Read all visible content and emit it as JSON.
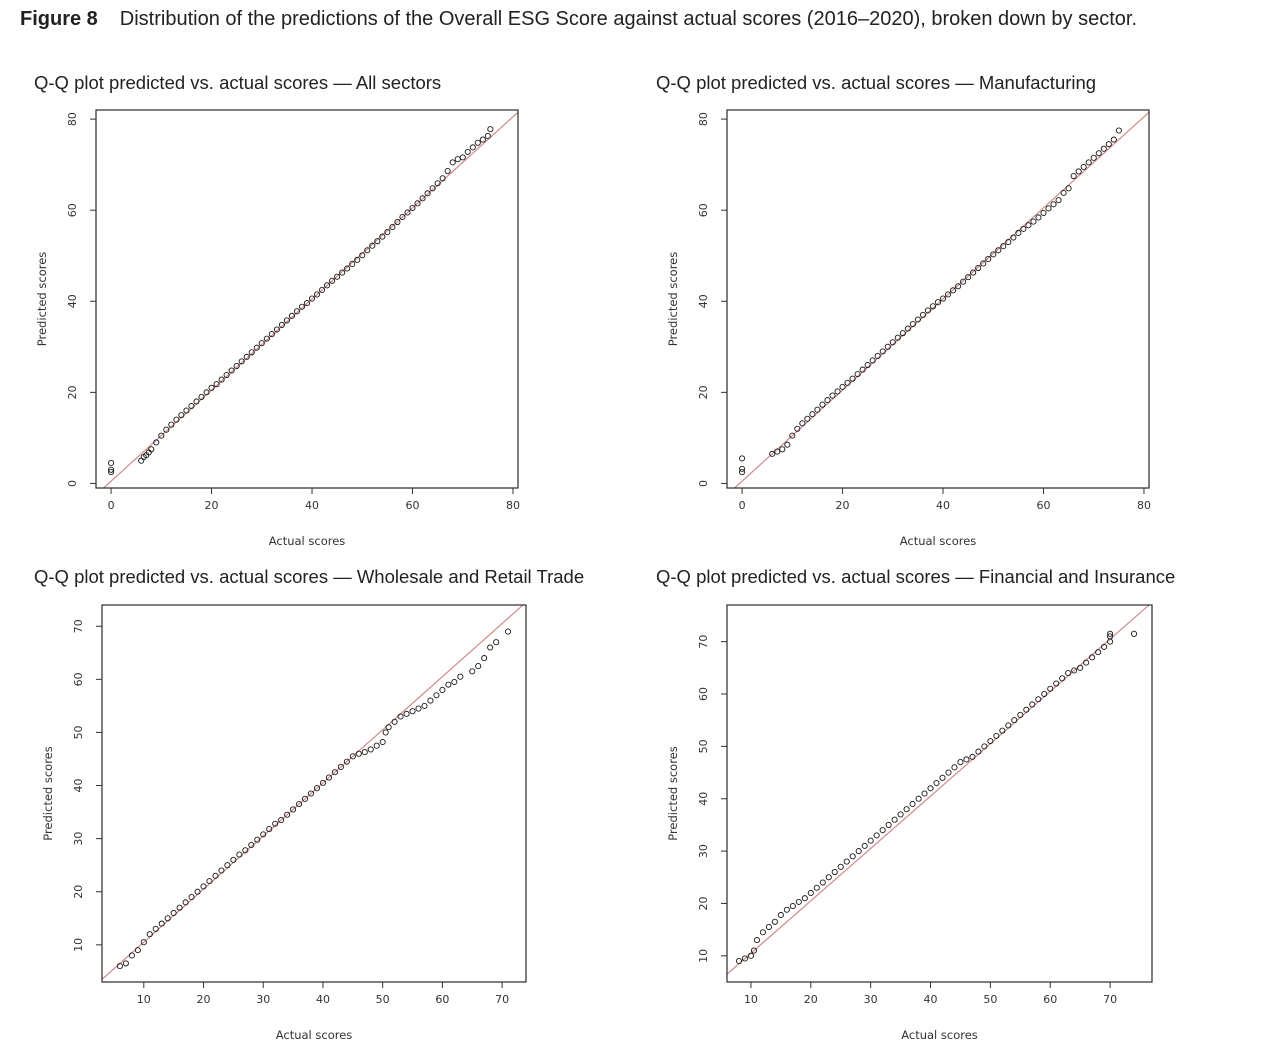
{
  "figure": {
    "label": "Figure 8",
    "caption": "Distribution of the predictions of the Overall ESG Score against actual scores (2016–2020), broken down by sector."
  },
  "colors": {
    "reference_line": "#d18a8a",
    "points": "#1a1a1a",
    "frame": "#2a2a2a"
  },
  "chart_data": [
    {
      "type": "scatter",
      "title": "Q-Q plot predicted vs. actual scores — All sectors",
      "xlabel": "Actual scores",
      "ylabel": "Predicted scores",
      "xlim": [
        -3,
        81
      ],
      "ylim": [
        -1,
        82
      ],
      "xticks": [
        0,
        20,
        40,
        60,
        80
      ],
      "yticks": [
        0,
        20,
        40,
        60,
        80
      ],
      "grid": false,
      "reference_line": {
        "intercept": 0.5,
        "slope": 1.0
      },
      "x": [
        0,
        0,
        0,
        6,
        6.5,
        7,
        7.5,
        8,
        9,
        10,
        11,
        12,
        13,
        14,
        15,
        16,
        17,
        18,
        19,
        20,
        21,
        22,
        23,
        24,
        25,
        26,
        27,
        28,
        29,
        30,
        31,
        32,
        33,
        34,
        35,
        36,
        37,
        38,
        39,
        40,
        41,
        42,
        43,
        44,
        45,
        46,
        47,
        48,
        49,
        50,
        51,
        52,
        53,
        54,
        55,
        56,
        57,
        58,
        59,
        60,
        61,
        62,
        63,
        64,
        65,
        66,
        67,
        68,
        69,
        70,
        71,
        72,
        73,
        74,
        75,
        75.5
      ],
      "y": [
        2.5,
        3,
        4.5,
        5,
        5.8,
        6.2,
        6.8,
        7.5,
        9,
        10.5,
        11.8,
        12.9,
        14,
        15,
        16,
        17,
        18,
        19,
        20,
        21,
        21.8,
        22.8,
        23.8,
        24.8,
        25.8,
        26.8,
        27.8,
        28.8,
        29.8,
        30.8,
        31.8,
        32.8,
        33.8,
        34.8,
        35.8,
        36.8,
        37.8,
        38.8,
        39.6,
        40.6,
        41.5,
        42.5,
        43.5,
        44.5,
        45.4,
        46.3,
        47.2,
        48.2,
        49.1,
        50.1,
        51.2,
        52.2,
        53.2,
        54.2,
        55.2,
        56.3,
        57.4,
        58.5,
        59.5,
        60.5,
        61.5,
        62.6,
        63.7,
        64.8,
        65.9,
        67,
        68.6,
        70.5,
        71.2,
        71.6,
        72.8,
        73.8,
        74.8,
        75.5,
        76.3,
        77.8
      ]
    },
    {
      "type": "scatter",
      "title": "Q-Q plot predicted vs. actual scores — Manufacturing",
      "xlabel": "Actual scores",
      "ylabel": "Predicted scores",
      "xlim": [
        -3,
        81
      ],
      "ylim": [
        -1,
        82
      ],
      "xticks": [
        0,
        20,
        40,
        60,
        80
      ],
      "yticks": [
        0,
        20,
        40,
        60,
        80
      ],
      "grid": false,
      "reference_line": {
        "intercept": 0.5,
        "slope": 1.0
      },
      "x": [
        0,
        0,
        0,
        6,
        7,
        8,
        9,
        10,
        11,
        12,
        13,
        14,
        15,
        16,
        17,
        18,
        19,
        20,
        21,
        22,
        23,
        24,
        25,
        26,
        27,
        28,
        29,
        30,
        31,
        32,
        33,
        34,
        35,
        36,
        37,
        38,
        39,
        40,
        41,
        42,
        43,
        44,
        45,
        46,
        47,
        48,
        49,
        50,
        51,
        52,
        53,
        54,
        55,
        56,
        57,
        58,
        59,
        60,
        61,
        62,
        63,
        64,
        65,
        66,
        67,
        68,
        69,
        70,
        71,
        72,
        73,
        74,
        75
      ],
      "y": [
        2.5,
        3.2,
        5.5,
        6.5,
        7,
        7.5,
        8.5,
        10.5,
        12,
        13.2,
        14.2,
        15.2,
        16.2,
        17.3,
        18.3,
        19.3,
        20.2,
        21.2,
        22.1,
        23,
        24,
        25,
        26,
        27,
        28,
        29,
        30,
        31,
        32,
        33,
        34,
        35,
        36,
        37,
        38,
        38.9,
        39.8,
        40.6,
        41.5,
        42.4,
        43.3,
        44.3,
        45.3,
        46.3,
        47.3,
        48.3,
        49.3,
        50.3,
        51.2,
        52.1,
        53,
        54,
        55,
        55.9,
        56.7,
        57.5,
        58.4,
        59.4,
        60.4,
        61.3,
        62.2,
        63.8,
        64.8,
        67.5,
        68.5,
        69.5,
        70.5,
        71.5,
        72.5,
        73.5,
        74.5,
        75.5,
        77.5
      ]
    },
    {
      "type": "scatter",
      "title": "Q-Q plot predicted vs. actual scores — Wholesale and Retail Trade",
      "xlabel": "Actual scores",
      "ylabel": "Predicted scores",
      "xlim": [
        3,
        74
      ],
      "ylim": [
        3,
        74
      ],
      "xticks": [
        10,
        20,
        30,
        40,
        50,
        60,
        70
      ],
      "yticks": [
        10,
        20,
        30,
        40,
        50,
        60,
        70
      ],
      "grid": false,
      "reference_line": {
        "intercept": 0.5,
        "slope": 1.0
      },
      "x": [
        6,
        7,
        8,
        9,
        10,
        11,
        12,
        13,
        14,
        15,
        16,
        17,
        18,
        19,
        20,
        21,
        22,
        23,
        24,
        25,
        26,
        27,
        28,
        29,
        30,
        31,
        32,
        33,
        34,
        35,
        36,
        37,
        38,
        39,
        40,
        41,
        42,
        43,
        44,
        45,
        46,
        47,
        48,
        49,
        50,
        50.5,
        51,
        52,
        53,
        54,
        55,
        56,
        57,
        58,
        59,
        60,
        61,
        62,
        63,
        65,
        66,
        67,
        68,
        69,
        71
      ],
      "y": [
        6,
        6.5,
        8,
        9,
        10.5,
        12,
        13,
        14,
        15,
        16,
        17,
        18,
        19,
        20,
        21,
        22,
        23,
        24,
        25,
        26,
        27,
        27.8,
        28.8,
        29.8,
        30.8,
        31.8,
        32.8,
        33.5,
        34.5,
        35.5,
        36.5,
        37.5,
        38.5,
        39.5,
        40.5,
        41.5,
        42.5,
        43.5,
        44.5,
        45.5,
        46,
        46.3,
        46.8,
        47.5,
        48.2,
        50,
        51,
        52,
        53,
        53.5,
        54,
        54.5,
        55,
        56,
        57,
        58,
        59,
        59.5,
        60.5,
        61.5,
        62.5,
        64,
        66,
        67,
        69
      ]
    },
    {
      "type": "scatter",
      "title": "Q-Q plot predicted vs. actual scores — Financial and Insurance",
      "xlabel": "Actual scores",
      "ylabel": "Predicted scores",
      "xlim": [
        6,
        77
      ],
      "ylim": [
        5,
        77
      ],
      "xticks": [
        10,
        20,
        30,
        40,
        50,
        60,
        70
      ],
      "yticks": [
        10,
        20,
        30,
        40,
        50,
        60,
        70
      ],
      "grid": false,
      "reference_line": {
        "intercept": 0.5,
        "slope": 1.0
      },
      "x": [
        8,
        9,
        10,
        10.5,
        11,
        12,
        13,
        14,
        15,
        16,
        17,
        18,
        19,
        20,
        21,
        22,
        23,
        24,
        25,
        26,
        27,
        28,
        29,
        30,
        31,
        32,
        33,
        34,
        35,
        36,
        37,
        38,
        39,
        40,
        41,
        42,
        43,
        44,
        45,
        46,
        47,
        48,
        49,
        50,
        51,
        52,
        53,
        54,
        55,
        56,
        57,
        58,
        59,
        60,
        61,
        62,
        63,
        64,
        65,
        66,
        67,
        68,
        69,
        70,
        70,
        70,
        74
      ],
      "y": [
        9,
        9.5,
        10,
        11,
        13,
        14.5,
        15.5,
        16.5,
        17.8,
        18.8,
        19.5,
        20.3,
        21,
        22,
        23,
        24,
        25,
        26,
        27,
        28,
        29,
        30,
        31,
        32,
        33,
        34,
        35,
        36,
        37,
        38,
        39,
        40,
        41,
        42,
        43,
        44,
        45,
        46,
        47,
        47.5,
        48,
        49,
        50,
        51,
        52,
        53,
        54,
        55,
        56,
        57,
        58,
        59,
        60,
        61,
        62,
        63,
        64,
        64.5,
        65,
        66,
        67,
        68,
        69,
        70,
        71,
        71.5,
        71.5
      ]
    }
  ]
}
